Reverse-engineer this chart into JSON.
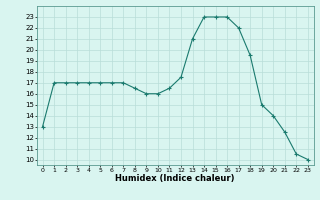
{
  "x": [
    0,
    1,
    2,
    3,
    4,
    5,
    6,
    7,
    8,
    9,
    10,
    11,
    12,
    13,
    14,
    15,
    16,
    17,
    18,
    19,
    20,
    21,
    22,
    23
  ],
  "y": [
    13,
    17,
    17,
    17,
    17,
    17,
    17,
    17,
    16.5,
    16,
    16,
    16.5,
    17.5,
    21,
    23,
    23,
    23,
    22,
    19.5,
    15,
    14,
    12.5,
    10.5,
    10
  ],
  "line_color": "#1a7a6e",
  "marker": "+",
  "bg_color": "#d9f5f0",
  "grid_color": "#b8ddd8",
  "xlabel": "Humidex (Indice chaleur)",
  "xlim": [
    -0.5,
    23.5
  ],
  "ylim": [
    9.5,
    24.0
  ],
  "yticks": [
    10,
    11,
    12,
    13,
    14,
    15,
    16,
    17,
    18,
    19,
    20,
    21,
    22,
    23
  ],
  "xticks": [
    0,
    1,
    2,
    3,
    4,
    5,
    6,
    7,
    8,
    9,
    10,
    11,
    12,
    13,
    14,
    15,
    16,
    17,
    18,
    19,
    20,
    21,
    22,
    23
  ]
}
